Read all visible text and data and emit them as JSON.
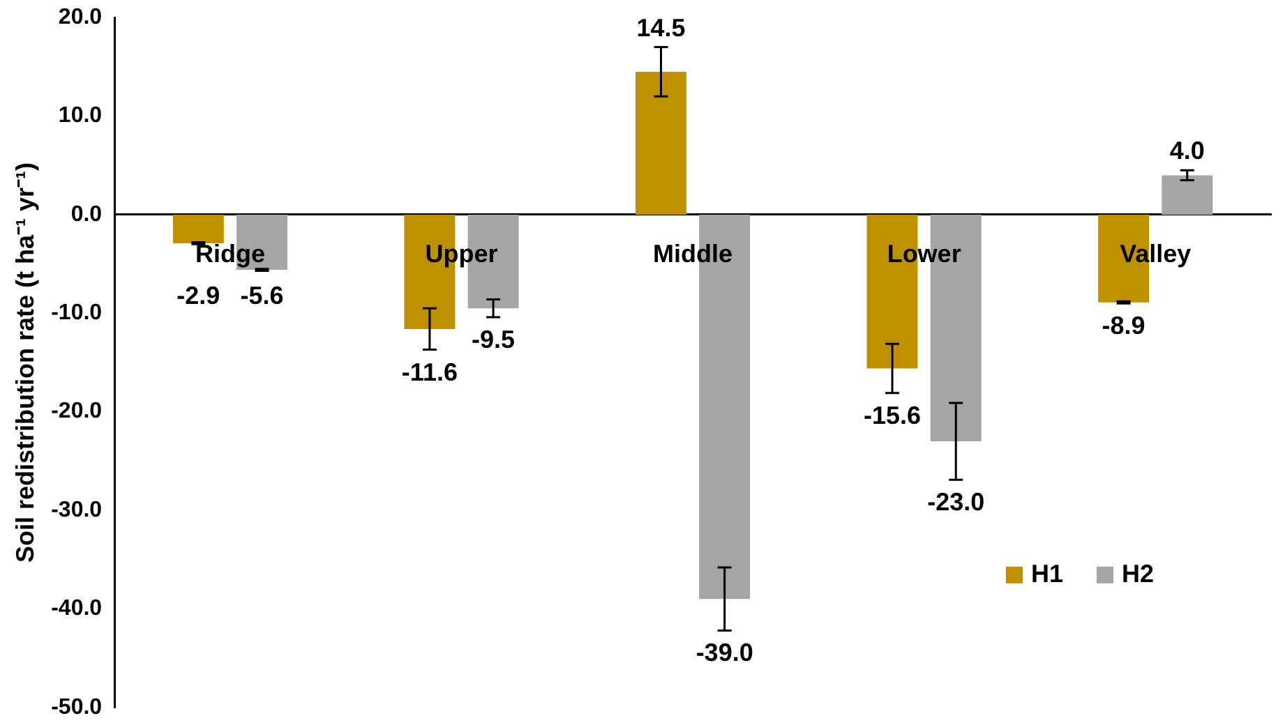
{
  "chart_data": {
    "type": "bar",
    "ylabel": "Soil redistribution rate (t ha⁻¹ yr⁻¹)",
    "categories": [
      "Ridge",
      "Upper",
      "Middle",
      "Lower",
      "Valley"
    ],
    "series": [
      {
        "name": "H1",
        "color": "#bf9000",
        "values": [
          -2.9,
          -11.6,
          14.5,
          -15.6,
          -8.9
        ],
        "errors": [
          0.1,
          2.1,
          2.5,
          2.5,
          0.1
        ],
        "value_labels": [
          "-2.9",
          "-11.6",
          "14.5",
          "-15.6",
          "-8.9"
        ]
      },
      {
        "name": "H2",
        "color": "#a5a5a5",
        "values": [
          -5.6,
          -9.5,
          -39.0,
          -23.0,
          4.0
        ],
        "errors": [
          0.1,
          0.9,
          3.2,
          3.9,
          0.5
        ],
        "value_labels": [
          "-5.6",
          "-9.5",
          "-39.0",
          "-23.0",
          "4.0"
        ]
      }
    ],
    "ylim": [
      -50,
      20
    ],
    "yticks": [
      {
        "value": -50,
        "label": "-50.0"
      },
      {
        "value": -40,
        "label": "-40.0"
      },
      {
        "value": -30,
        "label": "-30.0"
      },
      {
        "value": -20,
        "label": "-20.0"
      },
      {
        "value": -10,
        "label": "-10.0"
      },
      {
        "value": 0,
        "label": "0.0"
      },
      {
        "value": 10,
        "label": "10.0"
      },
      {
        "value": 20,
        "label": "20.0"
      }
    ],
    "grid": false,
    "legend": "bottom right"
  }
}
